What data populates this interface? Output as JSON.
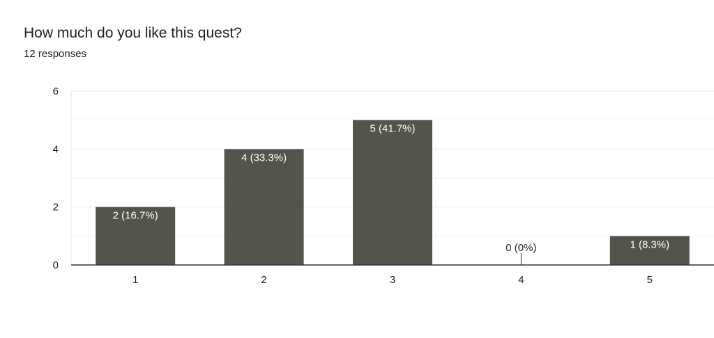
{
  "header": {
    "title": "How much do you like this quest?",
    "subtitle": "12 responses"
  },
  "colors": {
    "bar": "#53544c",
    "bar_label": "#ffffff",
    "empty_label": "#202124",
    "axis": "#333333",
    "grid_major": "#e8e8e8",
    "grid_minor": "#f3f3f3",
    "tick_text": "#202124"
  },
  "chart_data": {
    "type": "bar",
    "title": "How much do you like this quest?",
    "subtitle": "12 responses",
    "categories": [
      "1",
      "2",
      "3",
      "4",
      "5"
    ],
    "values": [
      2,
      4,
      5,
      0,
      1
    ],
    "value_labels": [
      "2 (16.7%)",
      "4 (33.3%)",
      "5 (41.7%)",
      "0 (0%)",
      "1 (8.3%)"
    ],
    "xlabel": "",
    "ylabel": "",
    "ylim": [
      0,
      6
    ],
    "yticks": [
      0,
      2,
      4,
      6
    ],
    "grid": true,
    "legend": "none"
  }
}
